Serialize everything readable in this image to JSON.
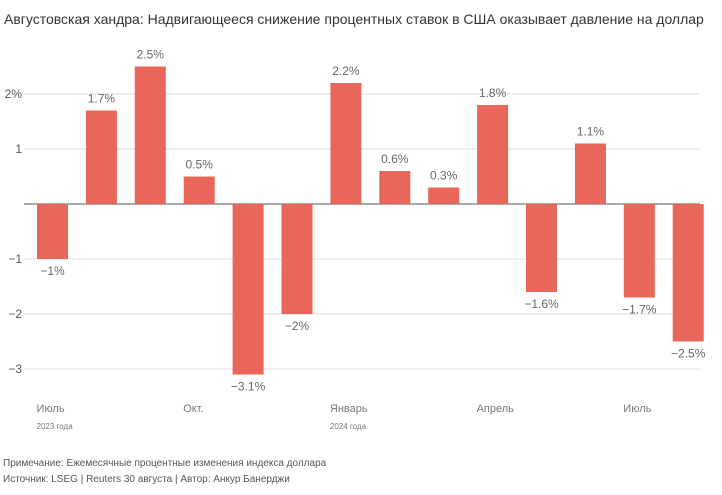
{
  "chart_data": {
    "type": "bar",
    "title": "Августовская хандра: Надвигающееся снижение процентных ставок в США оказывает давление на доллар",
    "categories": [
      "2023-07",
      "2023-08",
      "2023-09",
      "2023-10",
      "2023-11",
      "2023-12",
      "2024-01",
      "2024-02",
      "2024-03",
      "2024-04",
      "2024-05",
      "2024-06",
      "2024-07",
      "2024-08"
    ],
    "values": [
      -1,
      1.7,
      2.5,
      0.5,
      -3.1,
      -2,
      2.2,
      0.6,
      0.3,
      1.8,
      -1.6,
      1.1,
      -1.7,
      -2.5
    ],
    "data_labels": [
      "−1%",
      "1.7%",
      "2.5%",
      "0.5%",
      "−3.1%",
      "−2%",
      "2.2%",
      "0.6%",
      "0.3%",
      "1.8%",
      "−1.6%",
      "1.1%",
      "−1.7%",
      "−2.5%"
    ],
    "ylim": [
      -3.3,
      2.6
    ],
    "yticks": [
      {
        "v": 2,
        "label": "2%"
      },
      {
        "v": 1,
        "label": "1"
      },
      {
        "v": 0,
        "label": ""
      },
      {
        "v": -1,
        "label": "−1"
      },
      {
        "v": -2,
        "label": "−2"
      },
      {
        "v": -3,
        "label": "−3"
      }
    ],
    "xticks": [
      {
        "index": 0,
        "label": "Июль",
        "sub": "2023 года"
      },
      {
        "index": 3,
        "label": "Окт.",
        "sub": ""
      },
      {
        "index": 6,
        "label": "Январь",
        "sub": "2024 года"
      },
      {
        "index": 9,
        "label": "Апрель",
        "sub": ""
      },
      {
        "index": 12,
        "label": "Июль",
        "sub": ""
      }
    ],
    "grid": true,
    "bar_color": "#e8665a"
  },
  "note": "Примечание: Ежемесячные процентные изменения индекса доллара",
  "source": "Источник: LSEG | Reuters 30 августа | Автор: Анкур Банерджи"
}
